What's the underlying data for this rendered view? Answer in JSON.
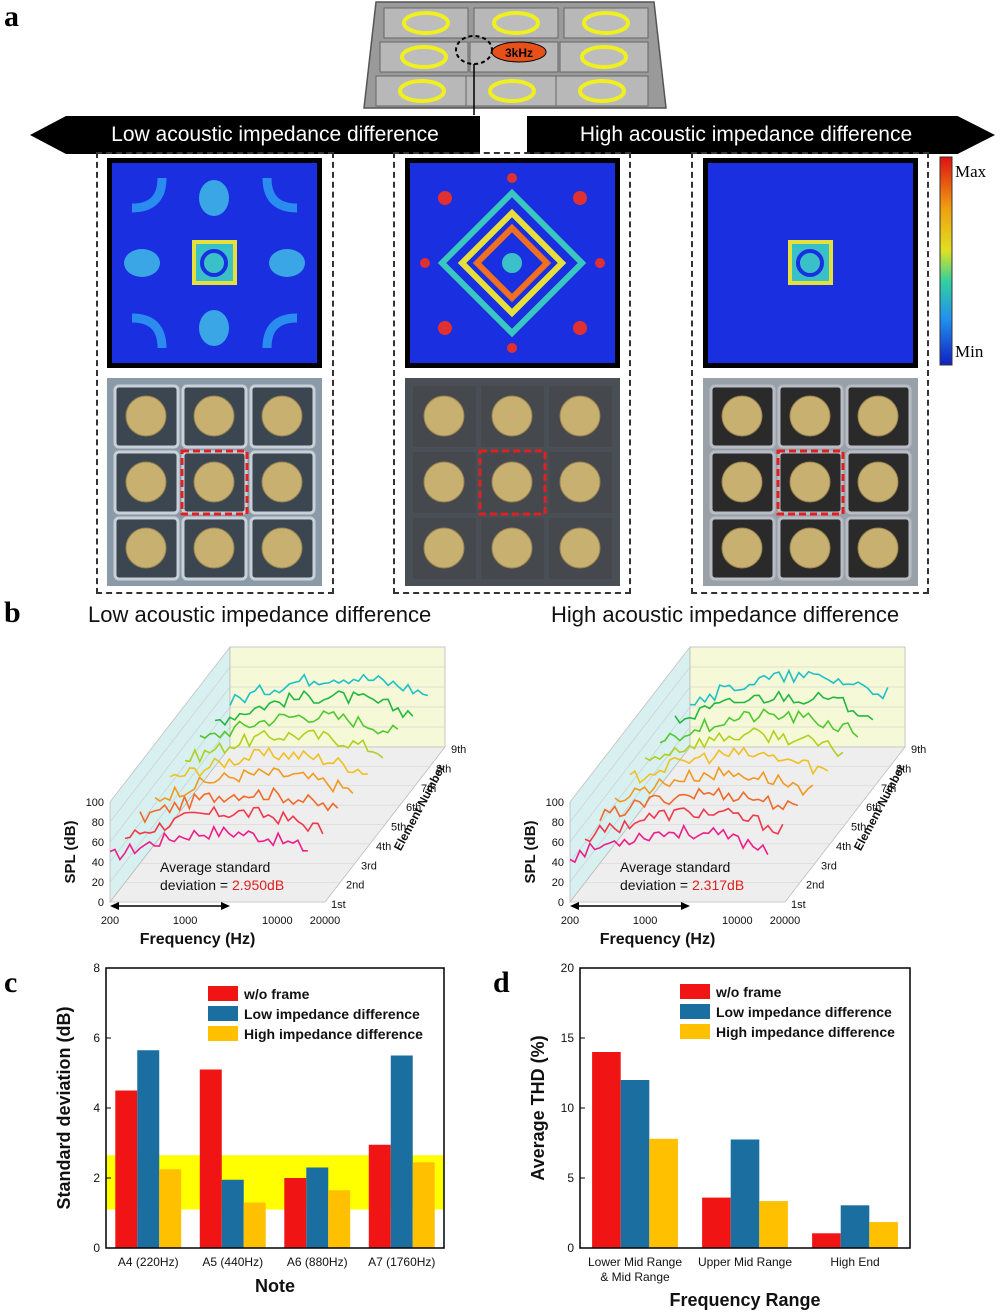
{
  "panel_a": {
    "letter": "a",
    "freq_label": "3kHz",
    "left_banner": "Low acoustic impedance difference",
    "right_banner": "High acoustic impedance difference",
    "colorbar_max": "Max",
    "colorbar_min": "Min"
  },
  "panel_b": {
    "letter": "b",
    "left_title": "Low acoustic impedance difference",
    "right_title": "High acoustic impedance difference",
    "ylabel": "SPL (dB)",
    "xlabel": "Frequency (Hz)",
    "zlabel": "Element Number",
    "y_ticks": [
      "0",
      "20",
      "40",
      "60",
      "80",
      "100"
    ],
    "x_ticks": [
      "200",
      "1000",
      "10000",
      "20000"
    ],
    "z_ticks": [
      "1st",
      "2nd",
      "3rd",
      "4th",
      "5th",
      "6th",
      "7th",
      "8th",
      "9th"
    ],
    "std_text_1": "Average standard",
    "std_text_2": "deviation = ",
    "left_std_value": "2.950dB",
    "right_std_value": "2.317dB"
  },
  "chart_data": [
    {
      "type": "bar",
      "panel": "c",
      "letter": "c",
      "categories": [
        "A4 (220Hz)",
        "A5 (440Hz)",
        "A6 (880Hz)",
        "A7 (1760Hz)"
      ],
      "series": [
        {
          "name": "w/o frame",
          "color": "#f01414",
          "values": [
            4.5,
            5.1,
            2.0,
            2.95
          ]
        },
        {
          "name": "Low impedance difference",
          "color": "#1a6fa0",
          "values": [
            5.65,
            1.95,
            2.3,
            5.5
          ]
        },
        {
          "name": "High impedance difference",
          "color": "#ffc000",
          "values": [
            2.25,
            1.3,
            1.65,
            2.45
          ]
        }
      ],
      "highlight_band": [
        1.1,
        2.65
      ],
      "highlight_color": "#ffff00",
      "xlabel": "Note",
      "ylabel": "Standard deviation (dB)",
      "ylim": [
        0,
        8
      ],
      "yticks": [
        0,
        2,
        4,
        6,
        8
      ],
      "legend": "top-right"
    },
    {
      "type": "bar",
      "panel": "d",
      "letter": "d",
      "categories": [
        "Lower Mid Range & Mid Range",
        "Upper Mid Range",
        "High End"
      ],
      "category_lines": [
        [
          "Lower Mid Range",
          "& Mid Range"
        ],
        [
          "Upper Mid Range"
        ],
        [
          "High End"
        ]
      ],
      "series": [
        {
          "name": "w/o frame",
          "color": "#f01414",
          "values": [
            14.0,
            3.6,
            1.05
          ]
        },
        {
          "name": "Low impedance difference",
          "color": "#1a6fa0",
          "values": [
            12.0,
            7.75,
            3.05
          ]
        },
        {
          "name": "High impedance difference",
          "color": "#ffc000",
          "values": [
            7.8,
            3.35,
            1.85
          ]
        }
      ],
      "xlabel": "Frequency Range",
      "ylabel": "Average THD (%)",
      "ylim": [
        0,
        20
      ],
      "yticks": [
        0,
        5,
        10,
        15,
        20
      ],
      "legend": "top-right"
    }
  ]
}
